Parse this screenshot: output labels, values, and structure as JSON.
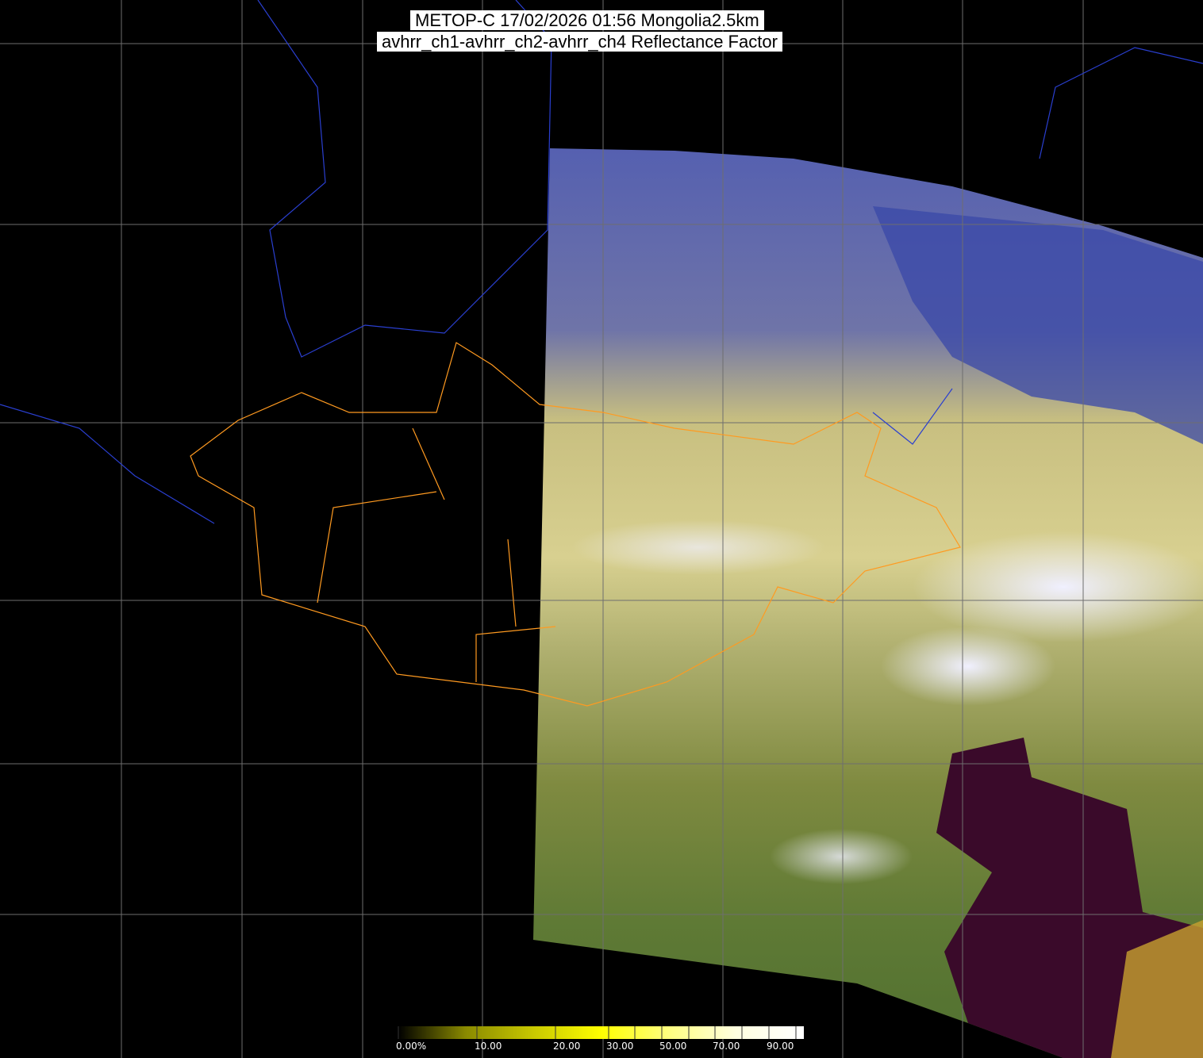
{
  "title": {
    "line1": "METOP-C 17/02/2026 01:56 Mongolia2.5km",
    "line2": "avhrr_ch1-avhrr_ch2-avhrr_ch4 Reflectance Factor"
  },
  "colorbar": {
    "unit": "%",
    "range": [
      0,
      100
    ],
    "colors": [
      "#000000",
      "#8a8a00",
      "#c8c800",
      "#ffff00",
      "#ffff80",
      "#ffffe0",
      "#ffffff"
    ],
    "tick_values": [
      0,
      10,
      20,
      30,
      40,
      50,
      60,
      70,
      80,
      90,
      100
    ],
    "labels": [
      {
        "value": 0,
        "text": "0.00%"
      },
      {
        "value": 10,
        "text": "10.00"
      },
      {
        "value": 20,
        "text": "20.00"
      },
      {
        "value": 30,
        "text": "30.00"
      },
      {
        "value": 50,
        "text": "50.00"
      },
      {
        "value": 70,
        "text": "70.00"
      },
      {
        "value": 90,
        "text": "90.00"
      }
    ]
  },
  "colors": {
    "graticule": "#6e6e6e",
    "country_borders": "#2a3fd0",
    "province_borders": "#ff9a20",
    "coastlines": "#1f8a8a"
  }
}
